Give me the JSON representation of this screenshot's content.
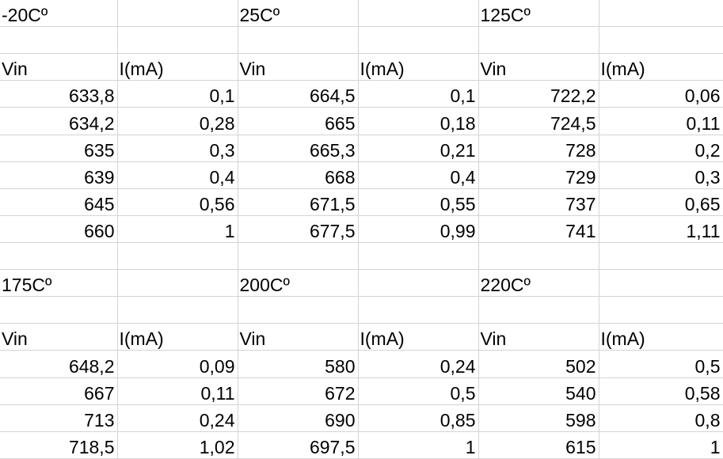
{
  "sheet": {
    "rows": [
      [
        {
          "t": "-20Cº"
        },
        {
          "t": ""
        },
        {
          "t": "25Cº"
        },
        {
          "t": ""
        },
        {
          "t": "125Cº"
        },
        {
          "t": ""
        }
      ],
      [
        {
          "t": ""
        },
        {
          "t": ""
        },
        {
          "t": ""
        },
        {
          "t": ""
        },
        {
          "t": ""
        },
        {
          "t": ""
        }
      ],
      [
        {
          "t": "Vin"
        },
        {
          "t": "I(mA)"
        },
        {
          "t": "Vin"
        },
        {
          "t": "I(mA)"
        },
        {
          "t": "Vin"
        },
        {
          "t": "I(mA)"
        }
      ],
      [
        {
          "t": "633,8",
          "n": true
        },
        {
          "t": "0,1",
          "n": true
        },
        {
          "t": "664,5",
          "n": true
        },
        {
          "t": "0,1",
          "n": true
        },
        {
          "t": "722,2",
          "n": true
        },
        {
          "t": "0,06",
          "n": true
        }
      ],
      [
        {
          "t": "634,2",
          "n": true
        },
        {
          "t": "0,28",
          "n": true
        },
        {
          "t": "665",
          "n": true
        },
        {
          "t": "0,18",
          "n": true
        },
        {
          "t": "724,5",
          "n": true
        },
        {
          "t": "0,11",
          "n": true
        }
      ],
      [
        {
          "t": "635",
          "n": true
        },
        {
          "t": "0,3",
          "n": true
        },
        {
          "t": "665,3",
          "n": true
        },
        {
          "t": "0,21",
          "n": true
        },
        {
          "t": "728",
          "n": true
        },
        {
          "t": "0,2",
          "n": true
        }
      ],
      [
        {
          "t": "639",
          "n": true
        },
        {
          "t": "0,4",
          "n": true
        },
        {
          "t": "668",
          "n": true
        },
        {
          "t": "0,4",
          "n": true
        },
        {
          "t": "729",
          "n": true
        },
        {
          "t": "0,3",
          "n": true
        }
      ],
      [
        {
          "t": "645",
          "n": true
        },
        {
          "t": "0,56",
          "n": true
        },
        {
          "t": "671,5",
          "n": true
        },
        {
          "t": "0,55",
          "n": true
        },
        {
          "t": "737",
          "n": true
        },
        {
          "t": "0,65",
          "n": true
        }
      ],
      [
        {
          "t": "660",
          "n": true
        },
        {
          "t": "1",
          "n": true
        },
        {
          "t": "677,5",
          "n": true
        },
        {
          "t": "0,99",
          "n": true
        },
        {
          "t": "741",
          "n": true
        },
        {
          "t": "1,11",
          "n": true
        }
      ],
      [
        {
          "t": ""
        },
        {
          "t": ""
        },
        {
          "t": ""
        },
        {
          "t": ""
        },
        {
          "t": ""
        },
        {
          "t": ""
        }
      ],
      [
        {
          "t": "175Cº"
        },
        {
          "t": ""
        },
        {
          "t": "200Cº"
        },
        {
          "t": ""
        },
        {
          "t": "220Cº"
        },
        {
          "t": ""
        }
      ],
      [
        {
          "t": ""
        },
        {
          "t": ""
        },
        {
          "t": ""
        },
        {
          "t": ""
        },
        {
          "t": ""
        },
        {
          "t": ""
        }
      ],
      [
        {
          "t": "Vin"
        },
        {
          "t": "I(mA)"
        },
        {
          "t": "Vin"
        },
        {
          "t": "I(mA)"
        },
        {
          "t": "Vin"
        },
        {
          "t": "I(mA)"
        }
      ],
      [
        {
          "t": "648,2",
          "n": true
        },
        {
          "t": "0,09",
          "n": true
        },
        {
          "t": "580",
          "n": true
        },
        {
          "t": "0,24",
          "n": true
        },
        {
          "t": "502",
          "n": true
        },
        {
          "t": "0,5",
          "n": true
        }
      ],
      [
        {
          "t": "667",
          "n": true
        },
        {
          "t": "0,11",
          "n": true
        },
        {
          "t": "672",
          "n": true
        },
        {
          "t": "0,5",
          "n": true
        },
        {
          "t": "540",
          "n": true
        },
        {
          "t": "0,58",
          "n": true
        }
      ],
      [
        {
          "t": "713",
          "n": true
        },
        {
          "t": "0,24",
          "n": true
        },
        {
          "t": "690",
          "n": true
        },
        {
          "t": "0,85",
          "n": true
        },
        {
          "t": "598",
          "n": true
        },
        {
          "t": "0,8",
          "n": true
        }
      ],
      [
        {
          "t": "718,5",
          "n": true
        },
        {
          "t": "1,02",
          "n": true
        },
        {
          "t": "697,5",
          "n": true
        },
        {
          "t": "1",
          "n": true
        },
        {
          "t": "615",
          "n": true
        },
        {
          "t": "1",
          "n": true
        }
      ]
    ]
  }
}
